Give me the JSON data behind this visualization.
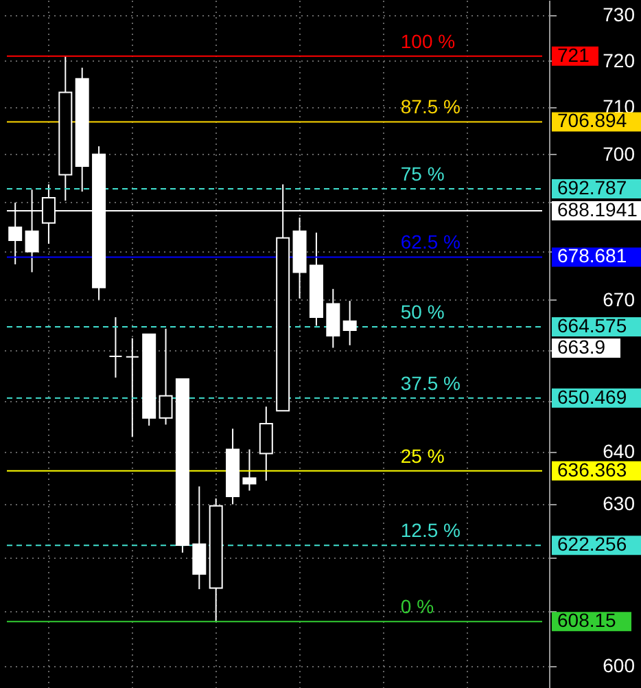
{
  "chart_data": {
    "type": "candlestick",
    "categories": [
      null,
      null,
      null,
      null,
      null,
      null,
      null,
      null,
      null,
      null,
      null,
      null,
      null,
      null,
      null,
      null,
      null,
      null,
      null,
      null,
      null,
      null,
      null,
      null,
      null,
      null,
      null,
      null,
      null,
      null,
      null,
      null
    ],
    "ohlc": [
      [
        684.8,
        689.9,
        677.2,
        682.1
      ],
      [
        684.0,
        692.6,
        675.6,
        679.8
      ],
      [
        685.7,
        693.7,
        681.4,
        690.9
      ],
      [
        695.7,
        721.0,
        690.3,
        713.2
      ],
      [
        716.1,
        718.5,
        692.2,
        697.5
      ],
      [
        700.0,
        701.7,
        670.0,
        672.5
      ],
      [
        658.7,
        666.5,
        654.5,
        658.7
      ],
      [
        658.6,
        662.3,
        642.9,
        658.6
      ],
      [
        663.1,
        663.1,
        645.1,
        646.6
      ],
      [
        646.6,
        664.2,
        645.3,
        650.9
      ],
      [
        654.2,
        654.2,
        620.9,
        622.3
      ],
      [
        622.5,
        633.4,
        614.1,
        616.9
      ],
      [
        614.3,
        631.1,
        608.15,
        629.7
      ],
      [
        640.5,
        644.5,
        630.0,
        631.5
      ],
      [
        635.0,
        640.5,
        632.6,
        633.9
      ],
      [
        639.7,
        648.8,
        634.5,
        645.5
      ],
      [
        648.0,
        693.7,
        648.0,
        682.6
      ],
      [
        684.0,
        686.8,
        670.3,
        675.6
      ],
      [
        677.0,
        683.7,
        664.8,
        666.5
      ],
      [
        669.2,
        672.2,
        660.4,
        662.8
      ],
      [
        665.7,
        669.8,
        660.9,
        663.9
      ],
      null,
      null,
      null,
      null,
      null,
      null,
      null,
      null,
      null,
      null,
      null
    ],
    "log": true,
    "ylim": [
      596.1,
      733.3
    ],
    "yticks": [
      600,
      {
        "value": 610,
        "label": null
      },
      {
        "value": 620,
        "label": null
      },
      630,
      640,
      {
        "value": 650,
        "label": null
      },
      {
        "value": 660,
        "label": null
      },
      670,
      {
        "value": 680,
        "label": null
      },
      {
        "value": 690,
        "label": null
      },
      700,
      710,
      720,
      730
    ],
    "tick_labels": "y",
    "grid": true,
    "ref_lines": [
      {
        "axis": "y",
        "value": 721,
        "label": "721",
        "color": "#ff0000",
        "line_style": "solid"
      },
      {
        "axis": "y",
        "value": 706.894,
        "label": "706.894",
        "color": "#ffd700",
        "line_style": "solid"
      },
      {
        "axis": "y",
        "value": 692.787,
        "label": "692.787",
        "color": "#40e0d0",
        "line_style": "dashed"
      },
      {
        "axis": "y",
        "value": 678.681,
        "label": "678.681",
        "color": "#0000ff",
        "line_style": "solid"
      },
      {
        "axis": "y",
        "value": 664.575,
        "label": "664.575",
        "color": "#40e0d0",
        "line_style": "dashed"
      },
      {
        "axis": "y",
        "value": 650.469,
        "label": "650.469",
        "color": "#40e0d0",
        "line_style": "dashed"
      },
      {
        "axis": "y",
        "value": 636.363,
        "label": "636.363",
        "color": "#ffff00",
        "line_style": "solid"
      },
      {
        "axis": "y",
        "value": 622.256,
        "label": "622.256",
        "color": "#40e0d0",
        "line_style": "dashed"
      },
      {
        "axis": "y",
        "value": 608.15,
        "label": "608.15",
        "color": "#32cd32",
        "line_style": "solid"
      },
      {
        "axis": "y",
        "value": 688.1941,
        "label": "688.1941",
        "color": "#ffffff",
        "line_style": "solid"
      }
    ],
    "annotations": [
      "100 %",
      "87.5 %",
      "75 %",
      "62.5 %",
      "50 %",
      "37.5 %",
      "25 %",
      "12.5 %",
      "0 %",
      "663.9"
    ]
  }
}
